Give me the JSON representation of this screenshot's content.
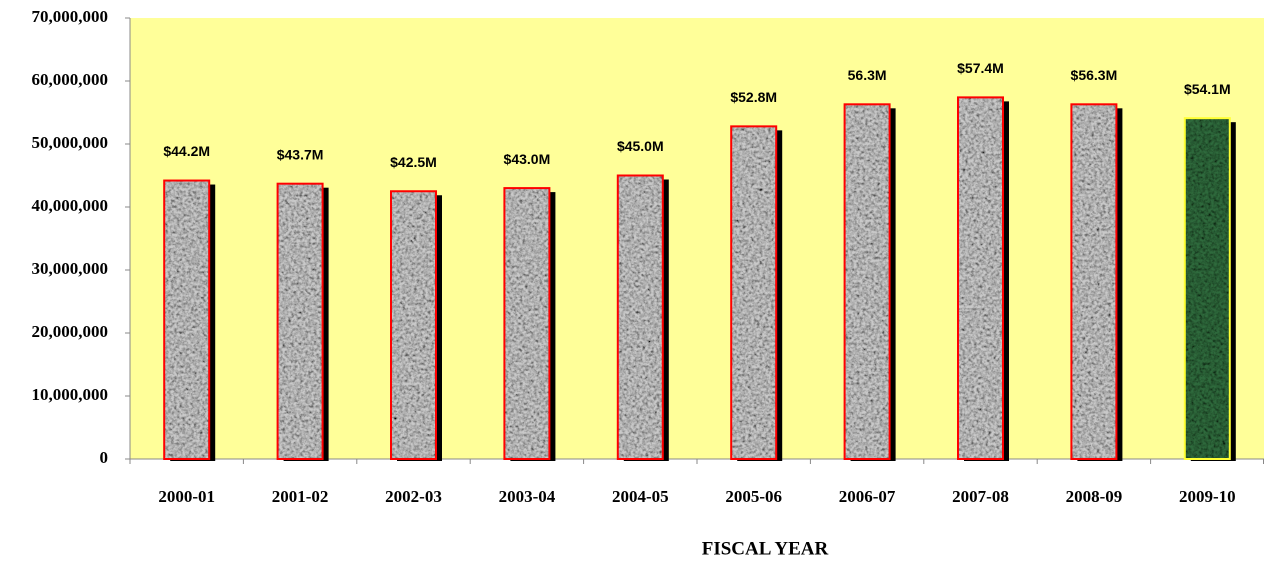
{
  "chart_data": {
    "type": "bar",
    "x_axis_label": "FISCAL YEAR",
    "categories": [
      "2000-01",
      "2001-02",
      "2002-03",
      "2003-04",
      "2004-05",
      "2005-06",
      "2006-07",
      "2007-08",
      "2008-09",
      "2009-10"
    ],
    "values": [
      44200000,
      43700000,
      42500000,
      43000000,
      45000000,
      52800000,
      56300000,
      57400000,
      56300000,
      54100000
    ],
    "value_labels": [
      "$44.2M",
      "$43.7M",
      "$42.5M",
      "$43.0M",
      "$45.0M",
      "$52.8M",
      "56.3M",
      "$57.4M",
      "$56.3M",
      "$54.1M"
    ],
    "colors": [
      "#c9c9c9",
      "#c9c9c9",
      "#c9c9c9",
      "#c9c9c9",
      "#c9c9c9",
      "#c9c9c9",
      "#c9c9c9",
      "#c9c9c9",
      "#c9c9c9",
      "#2f6a3c"
    ],
    "edge_colors": [
      "#ff0000",
      "#ff0000",
      "#ff0000",
      "#ff0000",
      "#ff0000",
      "#ff0000",
      "#ff0000",
      "#ff0000",
      "#ff0000",
      "#ffff33"
    ],
    "ylim": [
      0,
      70000000
    ],
    "yticks": [
      0,
      {
        "value": 10000000,
        "label": "10,000,000"
      },
      {
        "value": 20000000,
        "label": "20,000,000"
      },
      {
        "value": 30000000,
        "label": "30,000,000"
      },
      {
        "value": 40000000,
        "label": "40,000,000"
      },
      {
        "value": 50000000,
        "label": "50,000,000"
      },
      {
        "value": 60000000,
        "label": "60,000,000"
      },
      {
        "value": 70000000,
        "label": "70,000,000"
      }
    ],
    "plot_background": "#ffff99"
  }
}
